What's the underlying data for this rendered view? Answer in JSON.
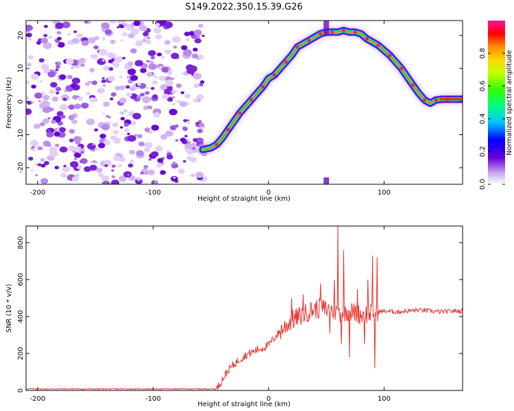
{
  "title": "S149.2022.350.15.39.G26",
  "colors": {
    "snr_line": "#e8322c",
    "noise": "#8a2be2",
    "frame": "#000000"
  },
  "chart_data": [
    {
      "type": "heatmap",
      "name": "spectrogram",
      "xlabel": "Height of straight line (km)",
      "ylabel": "Frequency (Hz)",
      "xlim": [
        -210,
        168
      ],
      "ylim": [
        -25,
        24.5
      ],
      "xticks": [
        -200,
        -100,
        0,
        100
      ],
      "yticks": [
        -20,
        -10,
        0,
        10,
        20
      ],
      "grid": false,
      "noise_region_x": [
        -210,
        -55
      ],
      "ridge": {
        "x": [
          -57,
          -50,
          -45,
          -40,
          -35,
          -30,
          -25,
          -20,
          -15,
          -10,
          -5,
          0,
          5,
          10,
          15,
          20,
          25,
          30,
          35,
          40,
          45,
          50,
          55,
          60,
          65,
          70,
          75,
          80,
          85,
          90,
          95,
          100,
          105,
          110,
          115,
          120,
          125,
          130,
          135,
          140,
          145,
          150,
          155,
          160,
          168
        ],
        "y": [
          -14.5,
          -14,
          -13,
          -11,
          -8.5,
          -6,
          -3.5,
          -1.5,
          0.5,
          2.5,
          4.5,
          7,
          8,
          10,
          12,
          14,
          16.5,
          17.5,
          18.5,
          19.5,
          20.5,
          21,
          21,
          21,
          21.5,
          21,
          21,
          20.5,
          19,
          18,
          17,
          15.5,
          14,
          12,
          10,
          7.5,
          5,
          2.5,
          0.5,
          -0.5,
          0.5,
          0.7,
          0.7,
          0.7,
          0.7
        ]
      },
      "colorbar": {
        "label": "Normalized spectral amplitude",
        "range": [
          0.0,
          1.0
        ],
        "ticks": [
          0.0,
          0.2,
          0.4,
          0.6,
          0.8
        ]
      }
    },
    {
      "type": "line",
      "name": "snr",
      "xlabel": "Height of straight line (km)",
      "ylabel": "SNR (10 * v/v)",
      "xlim": [
        -210,
        168
      ],
      "ylim": [
        0,
        890
      ],
      "xticks": [
        -200,
        -100,
        0,
        100
      ],
      "yticks": [
        0,
        200,
        400,
        600,
        800
      ],
      "grid": false,
      "baseline_value": 8,
      "x": [
        -210,
        -45,
        -40,
        -35,
        -30,
        -25,
        -20,
        -15,
        -10,
        -5,
        0,
        5,
        10,
        15,
        20,
        25,
        30,
        35,
        40,
        45,
        50,
        55,
        60,
        65,
        70,
        75,
        80,
        85,
        90,
        95,
        100,
        110,
        120,
        130,
        140,
        150,
        160,
        168
      ],
      "y": [
        8,
        8,
        60,
        110,
        140,
        170,
        190,
        205,
        220,
        230,
        245,
        285,
        320,
        350,
        380,
        395,
        410,
        430,
        440,
        445,
        440,
        435,
        420,
        425,
        430,
        420,
        410,
        415,
        420,
        425,
        430,
        425,
        430,
        435,
        430,
        425,
        430,
        430
      ],
      "spikes": [
        {
          "x": 20,
          "y": 500
        },
        {
          "x": 30,
          "y": 520
        },
        {
          "x": 45,
          "y": 580
        },
        {
          "x": 53,
          "y": 310
        },
        {
          "x": 57,
          "y": 600
        },
        {
          "x": 60,
          "y": 890
        },
        {
          "x": 63,
          "y": 250
        },
        {
          "x": 65,
          "y": 760
        },
        {
          "x": 70,
          "y": 180
        },
        {
          "x": 77,
          "y": 550
        },
        {
          "x": 83,
          "y": 250
        },
        {
          "x": 86,
          "y": 600
        },
        {
          "x": 90,
          "y": 730
        },
        {
          "x": 92,
          "y": 120
        },
        {
          "x": 94,
          "y": 720
        }
      ]
    }
  ]
}
